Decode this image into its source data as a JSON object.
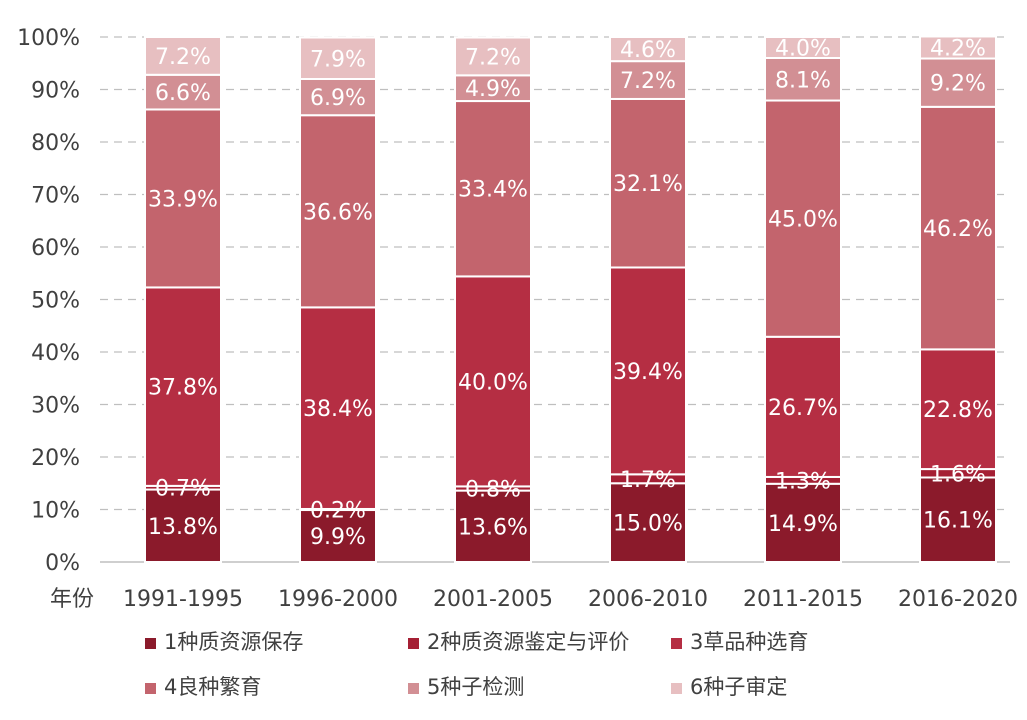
{
  "chart_data": {
    "type": "bar",
    "stacked": true,
    "normalized": true,
    "xlabel": "年份",
    "ylabel": "",
    "ylim": [
      0,
      100
    ],
    "yticks": [
      "0%",
      "10%",
      "20%",
      "30%",
      "40%",
      "50%",
      "60%",
      "70%",
      "80%",
      "90%",
      "100%"
    ],
    "grid": true,
    "legend_position": "bottom",
    "categories": [
      "1991-1995",
      "1996-2000",
      "2001-2005",
      "2006-2010",
      "2011-2015",
      "2016-2020"
    ],
    "series": [
      {
        "name": "1种质资源保存",
        "color": "#8b1a2b",
        "values": [
          13.8,
          9.9,
          13.6,
          15.0,
          14.9,
          16.1
        ],
        "labels": [
          "13.8%",
          "9.9%",
          "13.6%",
          "15.0%",
          "14.9%",
          "16.1%"
        ]
      },
      {
        "name": "2种质资源鉴定与评价",
        "color": "#a51f34",
        "values": [
          0.7,
          0.2,
          0.8,
          1.7,
          1.3,
          1.6
        ],
        "labels": [
          "0.7%",
          "0.2%",
          "0.8%",
          "1.7%",
          "1.3%",
          "1.6%"
        ]
      },
      {
        "name": "3草品种选育",
        "color": "#b52e43",
        "values": [
          37.8,
          38.4,
          40.0,
          39.4,
          26.7,
          22.8
        ],
        "labels": [
          "37.8%",
          "38.4%",
          "40.0%",
          "39.4%",
          "26.7%",
          "22.8%"
        ]
      },
      {
        "name": "4良种繁育",
        "color": "#c3646d",
        "values": [
          33.9,
          36.6,
          33.4,
          32.1,
          45.0,
          46.2
        ],
        "labels": [
          "33.9%",
          "36.6%",
          "33.4%",
          "32.1%",
          "45.0%",
          "46.2%"
        ]
      },
      {
        "name": "5种子检测",
        "color": "#d28f94",
        "values": [
          6.6,
          6.9,
          4.9,
          7.2,
          8.1,
          9.2
        ],
        "labels": [
          "6.6%",
          "6.9%",
          "4.9%",
          "7.2%",
          "8.1%",
          "9.2%"
        ]
      },
      {
        "name": "6种子审定",
        "color": "#e7bfc1",
        "values": [
          7.2,
          7.9,
          7.2,
          4.6,
          4.0,
          4.2
        ],
        "labels": [
          "7.2%",
          "7.9%",
          "7.2%",
          "4.6%",
          "4.0%",
          "4.2%"
        ]
      }
    ]
  }
}
